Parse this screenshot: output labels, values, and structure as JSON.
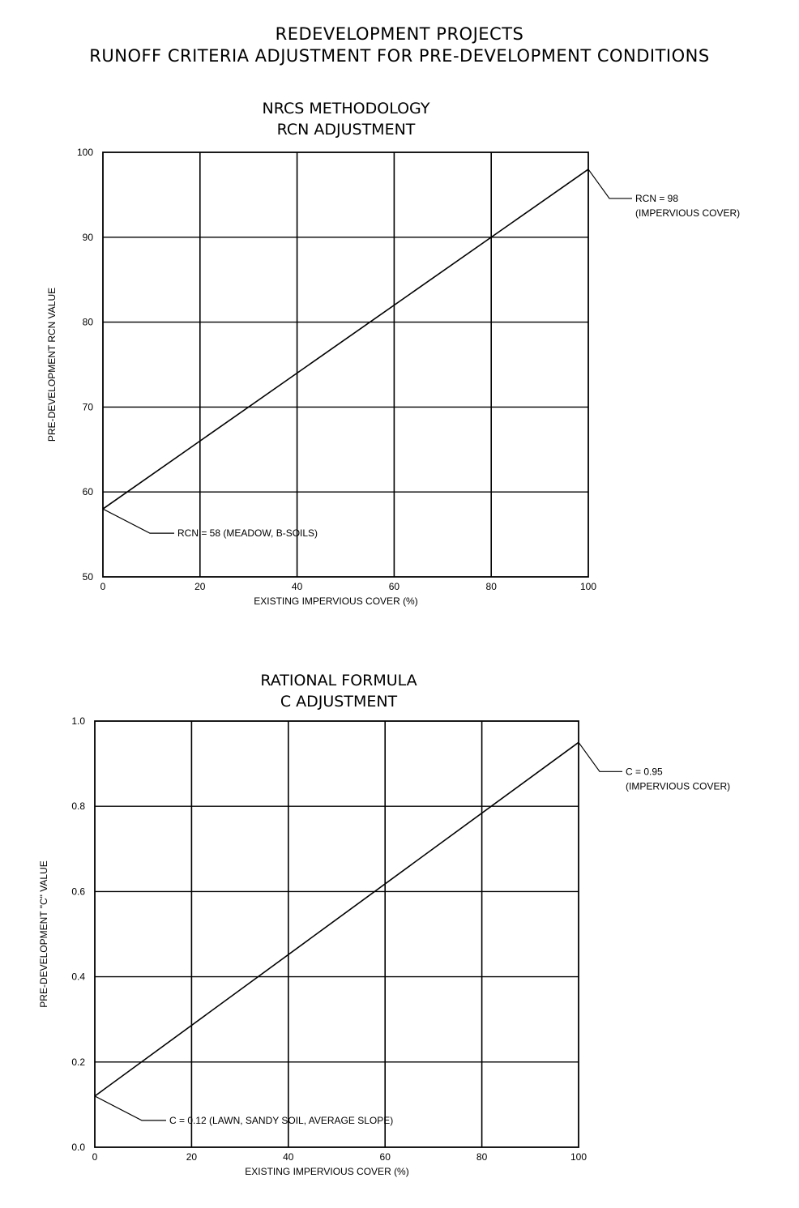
{
  "page": {
    "title_line1": "REDEVELOPMENT PROJECTS",
    "title_line2": "RUNOFF CRITERIA ADJUSTMENT FOR PRE-DEVELOPMENT CONDITIONS"
  },
  "chart_data": [
    {
      "type": "line",
      "title_line1": "NRCS METHODOLOGY",
      "title_line2": "RCN ADJUSTMENT",
      "xlabel": "EXISTING IMPERVIOUS COVER (%)",
      "ylabel": "PRE-DEVELOPMENT RCN VALUE",
      "xlim": [
        0,
        100
      ],
      "ylim": [
        50,
        100
      ],
      "xticks": [
        0,
        20,
        40,
        60,
        80,
        100
      ],
      "xtick_labels": [
        "0",
        "20",
        "40",
        "60",
        "80",
        "100"
      ],
      "yticks": [
        50,
        60,
        70,
        80,
        90,
        100
      ],
      "ytick_labels": [
        "50",
        "60",
        "70",
        "80",
        "90",
        "100"
      ],
      "grid": true,
      "series": [
        {
          "x": [
            0,
            100
          ],
          "y": [
            58,
            98
          ]
        }
      ],
      "annotations": [
        {
          "line1": "RCN = 58 (MEADOW, B-SOILS)",
          "line2": "",
          "x": 0,
          "y": 58,
          "side": "below-right"
        },
        {
          "line1": "RCN = 98",
          "line2": "(IMPERVIOUS COVER)",
          "x": 100,
          "y": 98,
          "side": "right"
        }
      ]
    },
    {
      "type": "line",
      "title_line1": "RATIONAL FORMULA",
      "title_line2": "C ADJUSTMENT",
      "xlabel": "EXISTING IMPERVIOUS COVER (%)",
      "ylabel": "PRE-DEVELOPMENT \"C\" VALUE",
      "xlim": [
        0,
        100
      ],
      "ylim": [
        0.0,
        1.0
      ],
      "xticks": [
        0,
        20,
        40,
        60,
        80,
        100
      ],
      "xtick_labels": [
        "0",
        "20",
        "40",
        "60",
        "80",
        "100"
      ],
      "yticks": [
        0.0,
        0.2,
        0.4,
        0.6,
        0.8,
        1.0
      ],
      "ytick_labels": [
        "0.0",
        "0.2",
        "0.4",
        "0.6",
        "0.8",
        "1.0"
      ],
      "grid": true,
      "series": [
        {
          "x": [
            0,
            100
          ],
          "y": [
            0.12,
            0.95
          ]
        }
      ],
      "annotations": [
        {
          "line1": "C = 0.12 (LAWN, SANDY SOIL, AVERAGE SLOPE)",
          "line2": "",
          "x": 0,
          "y": 0.12,
          "side": "below-right"
        },
        {
          "line1": "C = 0.95",
          "line2": "(IMPERVIOUS COVER)",
          "x": 100,
          "y": 0.95,
          "side": "right"
        }
      ]
    }
  ]
}
